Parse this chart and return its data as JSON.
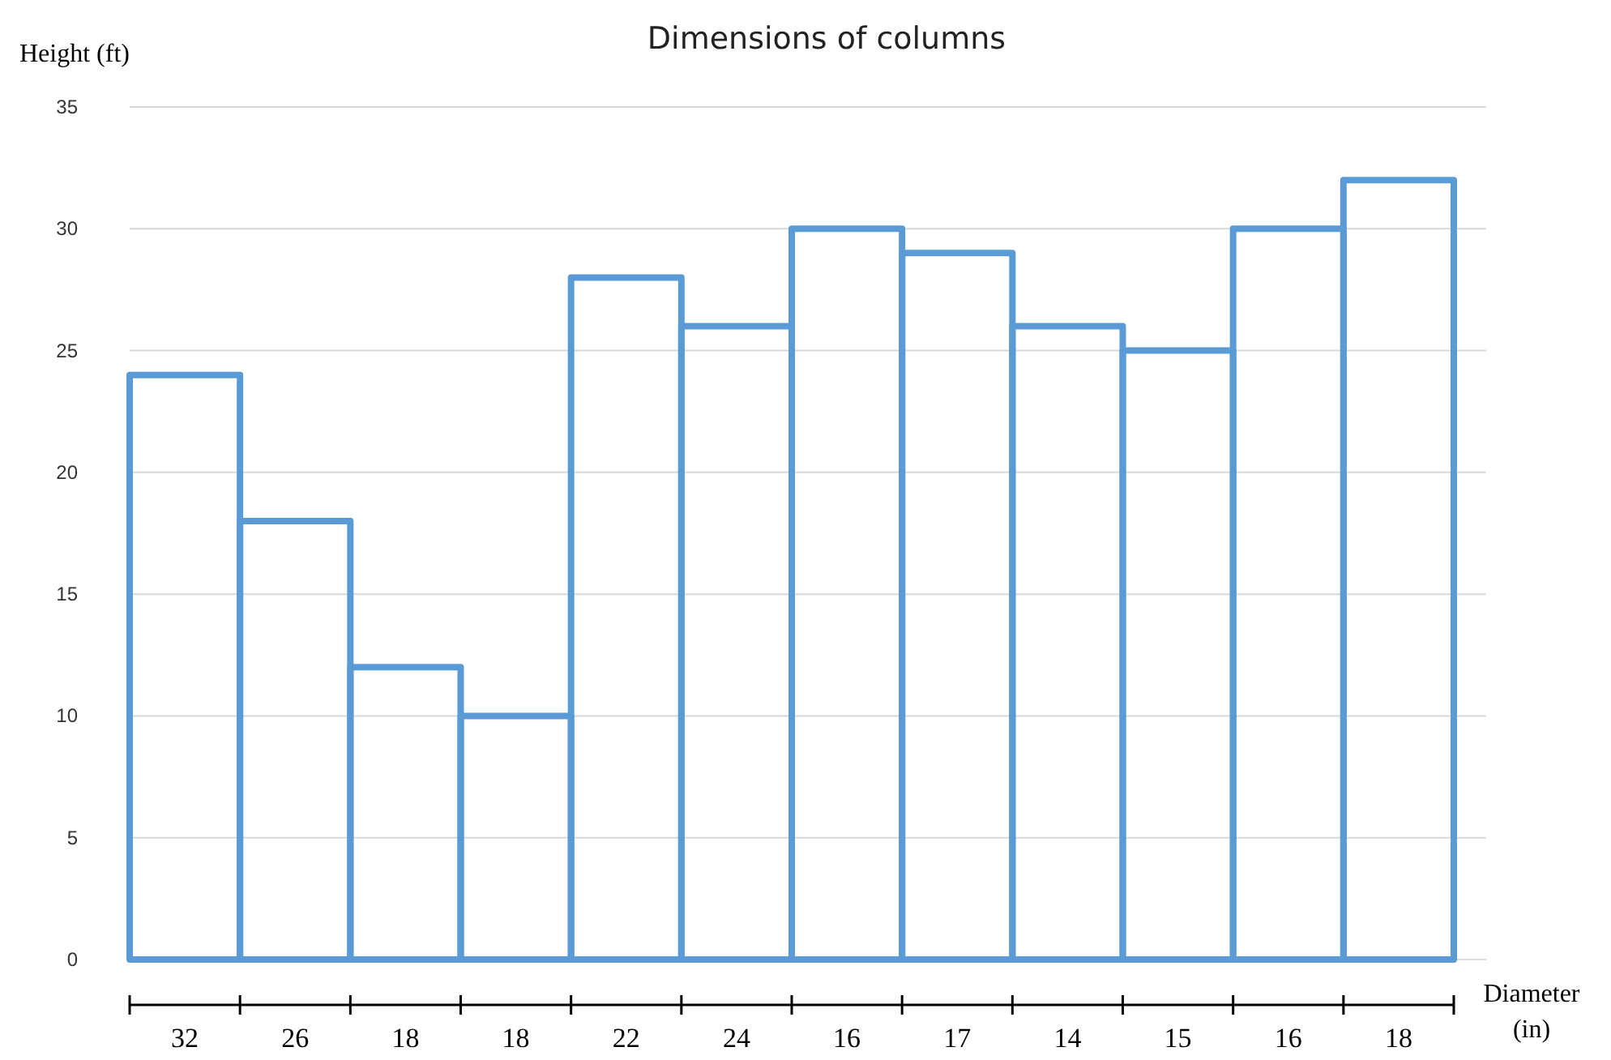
{
  "chart_data": {
    "type": "bar",
    "title": "Dimensions of columns",
    "xlabel": "Diameter (in)",
    "ylabel": "Height (ft)",
    "categories": [
      "32",
      "26",
      "18",
      "18",
      "22",
      "24",
      "16",
      "17",
      "14",
      "15",
      "16",
      "18"
    ],
    "values": [
      24,
      18,
      12,
      10,
      28,
      26,
      30,
      29,
      26,
      25,
      30,
      32
    ],
    "color": "#5b9bd5",
    "ylim": [
      0,
      35
    ],
    "yticks": [
      0,
      5,
      10,
      15,
      20,
      25,
      30,
      35
    ],
    "grid": "y"
  }
}
